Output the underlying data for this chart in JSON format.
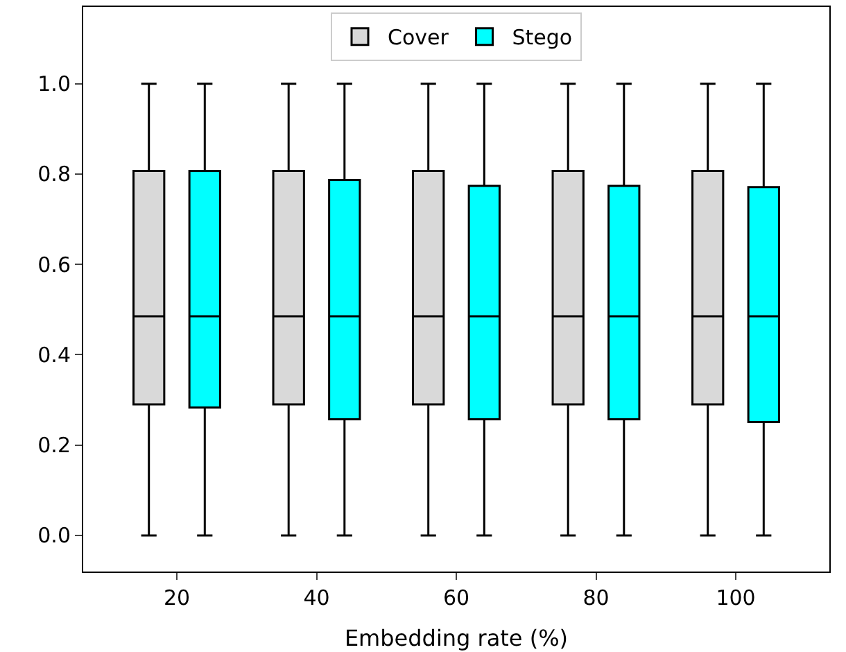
{
  "chart_data": {
    "type": "box",
    "xlabel": "Embedding rate (%)",
    "categories": [
      "20",
      "40",
      "60",
      "80",
      "100"
    ],
    "ylim": [
      -0.08,
      1.17
    ],
    "yticks": [
      {
        "value": 0,
        "label": "0.0"
      },
      0.2,
      0.4,
      0.6,
      0.8,
      {
        "value": 1,
        "label": "1.0"
      }
    ],
    "legend": "top",
    "series": [
      {
        "name": "Cover",
        "color": "#d9d9d9",
        "boxes": [
          {
            "low": 0,
            "q1": 0.29,
            "median": 0.485,
            "q3": 0.807,
            "high": 1
          },
          {
            "low": 0,
            "q1": 0.29,
            "median": 0.485,
            "q3": 0.807,
            "high": 1
          },
          {
            "low": 0,
            "q1": 0.29,
            "median": 0.485,
            "q3": 0.807,
            "high": 1
          },
          {
            "low": 0,
            "q1": 0.29,
            "median": 0.485,
            "q3": 0.807,
            "high": 1
          },
          {
            "low": 0,
            "q1": 0.29,
            "median": 0.485,
            "q3": 0.807,
            "high": 1
          }
        ]
      },
      {
        "name": "Stego",
        "color": "#00ffff",
        "boxes": [
          {
            "low": 0,
            "q1": 0.283,
            "median": 0.485,
            "q3": 0.807,
            "high": 1
          },
          {
            "low": 0,
            "q1": 0.257,
            "median": 0.485,
            "q3": 0.787,
            "high": 1
          },
          {
            "low": 0,
            "q1": 0.257,
            "median": 0.485,
            "q3": 0.774,
            "high": 1
          },
          {
            "low": 0,
            "q1": 0.257,
            "median": 0.485,
            "q3": 0.774,
            "high": 1
          },
          {
            "low": 0,
            "q1": 0.251,
            "median": 0.485,
            "q3": 0.771,
            "high": 1
          }
        ]
      }
    ]
  }
}
